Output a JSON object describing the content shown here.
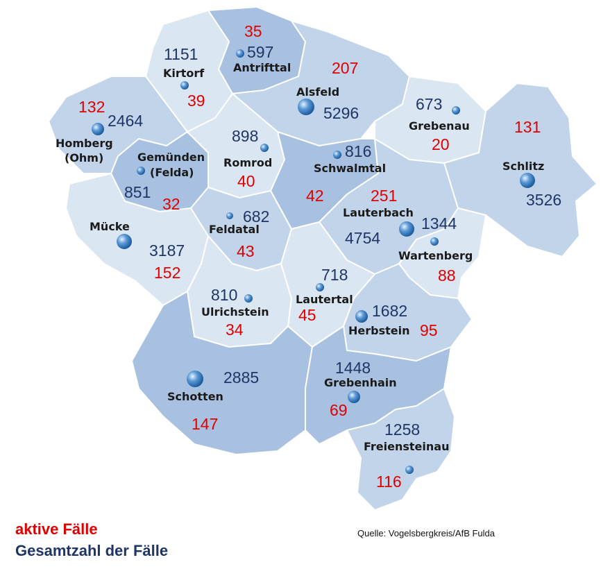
{
  "colors": {
    "active": "#e00000",
    "total": "#1f3566",
    "region_light": "#dbe6f3",
    "region_mid": "#c2d4ea",
    "region_dark": "#a9c1e0",
    "border": "#ffffff",
    "town_dot": "#3a7fc4"
  },
  "legend": {
    "active_label": "aktive Fälle",
    "total_label": "Gesamtzahl der Fälle"
  },
  "source": "Quelle: Vogelsbergkreis/AfB Fulda",
  "municipalities": [
    {
      "id": "antrifttal",
      "name": "Antrifttal",
      "total": "597",
      "active": "35"
    },
    {
      "id": "kirtorf",
      "name": "Kirtorf",
      "total": "1151",
      "active": "39"
    },
    {
      "id": "alsfeld",
      "name": "Alsfeld",
      "total": "5296",
      "active": "207"
    },
    {
      "id": "grebenau",
      "name": "Grebenau",
      "total": "673",
      "active": "20"
    },
    {
      "id": "homberg",
      "name": "Homberg\n(Ohm)",
      "name_line1": "Homberg",
      "name_line2": "(Ohm)",
      "total": "2464",
      "active": "132"
    },
    {
      "id": "gemuenden",
      "name": "Gemünden\n(Felda)",
      "name_line1": "Gemünden",
      "name_line2": "(Felda)",
      "total": "851",
      "active": "32"
    },
    {
      "id": "romrod",
      "name": "Romrod",
      "total": "898",
      "active": "40"
    },
    {
      "id": "schwalmtal",
      "name": "Schwalmtal",
      "total": "816",
      "active": "42"
    },
    {
      "id": "schlitz",
      "name": "Schlitz",
      "total": "3526",
      "active": "131"
    },
    {
      "id": "muecke",
      "name": "Mücke",
      "total": "3187",
      "active": "152"
    },
    {
      "id": "feldatal",
      "name": "Feldatal",
      "total": "682",
      "active": "43"
    },
    {
      "id": "lauterbach",
      "name": "Lauterbach",
      "total": "4754",
      "active": "251"
    },
    {
      "id": "wartenberg",
      "name": "Wartenberg",
      "total": "1344",
      "active": "88"
    },
    {
      "id": "ulrichstein",
      "name": "Ulrichstein",
      "total": "810",
      "active": "34"
    },
    {
      "id": "lautertal",
      "name": "Lautertal",
      "total": "718",
      "active": "45"
    },
    {
      "id": "herbstein",
      "name": "Herbstein",
      "total": "1682",
      "active": "95"
    },
    {
      "id": "schotten",
      "name": "Schotten",
      "total": "2885",
      "active": "147"
    },
    {
      "id": "grebenhain",
      "name": "Grebenhain",
      "total": "1448",
      "active": "69"
    },
    {
      "id": "freiensteinau",
      "name": "Freiensteinau",
      "total": "1258",
      "active": "116"
    }
  ]
}
